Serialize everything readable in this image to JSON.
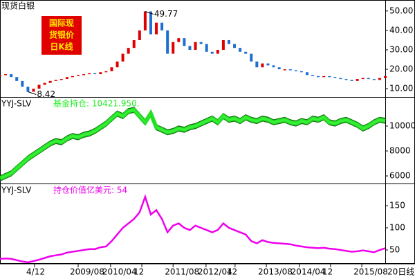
{
  "chart_data": [
    {
      "type": "candle",
      "title": "现货白银",
      "badge": [
        "国际现",
        "货银价",
        "日K线"
      ],
      "up_color": "#e00000",
      "down_color": "#1e6fd0",
      "values": [
        17,
        17.5,
        16,
        14,
        11,
        8.42,
        10,
        12,
        13,
        14,
        14.5,
        15,
        16,
        16.5,
        17,
        17.5,
        18,
        17.5,
        18.5,
        19,
        21,
        24,
        28,
        31,
        35,
        40,
        49.77,
        38,
        44,
        40,
        28,
        34,
        36,
        32,
        30,
        34,
        33,
        29,
        28,
        30,
        35,
        33,
        31,
        29,
        28,
        24,
        21,
        23,
        22,
        21,
        20,
        20,
        19.5,
        19,
        18.5,
        17,
        16.5,
        16,
        16.5,
        16,
        15.5,
        15,
        14.5,
        14,
        15,
        15.5,
        15,
        14.5,
        15.5,
        16.5
      ],
      "annotations": [
        "49.77",
        "8.42"
      ],
      "ylim": [
        5.75,
        55.3
      ],
      "yticks": [
        {
          "value": 10,
          "label": "10.00"
        },
        {
          "value": 20,
          "label": "20.00"
        },
        {
          "value": 30,
          "label": "30.00"
        },
        {
          "value": 40,
          "label": "40.00"
        },
        {
          "value": 50,
          "label": "50.00"
        }
      ]
    },
    {
      "type": "band",
      "name": "YYJ-SLV",
      "label": "基金持仓: 10421.950.",
      "color": "#22ee22",
      "values": [
        5800,
        6000,
        6200,
        6600,
        7000,
        7400,
        7700,
        8000,
        8300,
        8600,
        8800,
        8700,
        9000,
        9200,
        9100,
        9300,
        9400,
        9600,
        9900,
        10200,
        10600,
        11000,
        10800,
        11200,
        11300,
        10800,
        10300,
        11000,
        9900,
        9700,
        9500,
        9600,
        9800,
        9700,
        9900,
        10000,
        10200,
        10400,
        10600,
        10300,
        10800,
        10500,
        10600,
        10400,
        10700,
        10500,
        10400,
        10600,
        10500,
        10300,
        10400,
        10500,
        10300,
        10200,
        10400,
        10300,
        10600,
        10500,
        10700,
        10300,
        10200,
        10400,
        10500,
        10300,
        10100,
        9800,
        10000,
        10300,
        10500,
        10421.95
      ],
      "ylim": [
        5390,
        12280
      ],
      "yticks": [
        6000,
        8000,
        10000
      ]
    },
    {
      "type": "line",
      "name": "YYJ-SLV",
      "label": "持仓价值亿美元: 54",
      "color": "#ee00ee",
      "values": [
        30,
        31,
        30,
        27,
        24,
        22,
        25,
        28,
        32,
        36,
        38,
        40,
        44,
        46,
        48,
        50,
        52,
        52,
        56,
        58,
        70,
        85,
        100,
        110,
        120,
        135,
        170,
        130,
        140,
        120,
        90,
        105,
        110,
        100,
        95,
        105,
        100,
        95,
        90,
        95,
        110,
        100,
        95,
        90,
        85,
        70,
        65,
        72,
        68,
        66,
        65,
        64,
        63,
        60,
        58,
        56,
        55,
        54,
        55,
        53,
        52,
        50,
        48,
        46,
        47,
        49,
        47,
        45,
        50,
        54
      ],
      "ylim": [
        20.3,
        198.4
      ],
      "yticks": [
        50,
        100,
        150
      ],
      "xlim": [
        0,
        69
      ],
      "xticks": [
        {
          "value": 6.2,
          "label": "4/12"
        },
        {
          "value": 14,
          "label": "2009/08"
        },
        {
          "value": 19.8,
          "label": "2010/04"
        },
        {
          "value": 25.4,
          "label": "12"
        },
        {
          "value": 31,
          "label": "2011/08"
        },
        {
          "value": 36.9,
          "label": "2012/04"
        },
        {
          "value": 42.1,
          "label": "12"
        },
        {
          "value": 47.7,
          "label": "2013/08"
        },
        {
          "value": 53.6,
          "label": "2014/04"
        },
        {
          "value": 59.2,
          "label": "12"
        },
        {
          "value": 64.8,
          "label": "2015/08"
        }
      ],
      "x_note": "20日线"
    }
  ]
}
